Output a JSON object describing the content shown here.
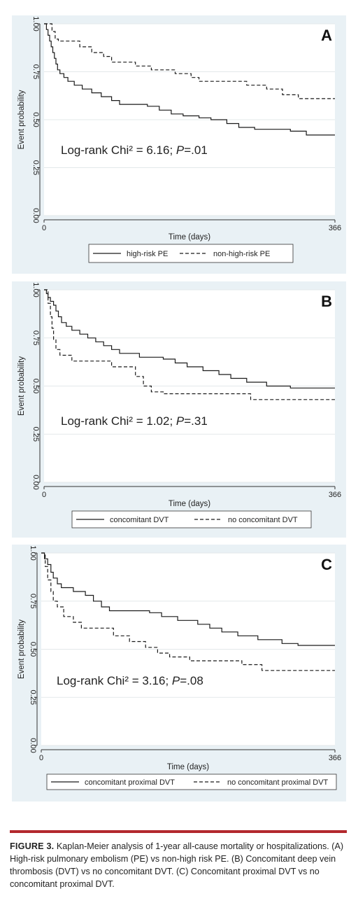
{
  "chart_data": [
    {
      "type": "line",
      "panel_letter": "A",
      "title": "",
      "xlabel": "Time (days)",
      "ylabel": "Event probability",
      "xlim": [
        0,
        366
      ],
      "ylim": [
        0,
        1
      ],
      "x_ticks": [
        "0",
        "366"
      ],
      "y_ticks": [
        "0.00",
        "0.25",
        "0.50",
        "0.75",
        "1.00"
      ],
      "annotation": {
        "prefix": "Log-rank Chi² = 6.16; ",
        "italic": "P",
        "suffix": "=.01"
      },
      "legend_position": "bottom",
      "series": [
        {
          "name": "high-risk PE",
          "dash": "solid",
          "points": [
            [
              0,
              1
            ],
            [
              3,
              0.97
            ],
            [
              5,
              0.94
            ],
            [
              7,
              0.91
            ],
            [
              9,
              0.88
            ],
            [
              11,
              0.85
            ],
            [
              13,
              0.82
            ],
            [
              15,
              0.79
            ],
            [
              17,
              0.76
            ],
            [
              20,
              0.74
            ],
            [
              25,
              0.72
            ],
            [
              30,
              0.7
            ],
            [
              38,
              0.68
            ],
            [
              48,
              0.66
            ],
            [
              60,
              0.64
            ],
            [
              72,
              0.62
            ],
            [
              85,
              0.6
            ],
            [
              95,
              0.58
            ],
            [
              130,
              0.57
            ],
            [
              145,
              0.55
            ],
            [
              160,
              0.53
            ],
            [
              175,
              0.52
            ],
            [
              195,
              0.51
            ],
            [
              210,
              0.5
            ],
            [
              230,
              0.48
            ],
            [
              245,
              0.46
            ],
            [
              265,
              0.45
            ],
            [
              310,
              0.44
            ],
            [
              330,
              0.42
            ],
            [
              366,
              0.42
            ]
          ]
        },
        {
          "name": "non-high-risk PE",
          "dash": "dashed",
          "points": [
            [
              0,
              1
            ],
            [
              8,
              1
            ],
            [
              10,
              0.96
            ],
            [
              14,
              0.92
            ],
            [
              18,
              0.91
            ],
            [
              45,
              0.88
            ],
            [
              60,
              0.85
            ],
            [
              75,
              0.83
            ],
            [
              85,
              0.8
            ],
            [
              115,
              0.78
            ],
            [
              135,
              0.76
            ],
            [
              165,
              0.74
            ],
            [
              185,
              0.72
            ],
            [
              195,
              0.7
            ],
            [
              255,
              0.68
            ],
            [
              280,
              0.66
            ],
            [
              300,
              0.63
            ],
            [
              320,
              0.61
            ],
            [
              366,
              0.61
            ]
          ]
        }
      ]
    },
    {
      "type": "line",
      "panel_letter": "B",
      "title": "",
      "xlabel": "Time (days)",
      "ylabel": "Event probability",
      "xlim": [
        0,
        366
      ],
      "ylim": [
        0,
        1
      ],
      "x_ticks": [
        "0",
        "366"
      ],
      "y_ticks": [
        "0.00",
        "0.25",
        "0.50",
        "0.75",
        "1.00"
      ],
      "annotation": {
        "prefix": "Log-rank Chi² = 1.02; ",
        "italic": "P",
        "suffix": "=.31"
      },
      "legend_position": "bottom",
      "series": [
        {
          "name": "concomitant DVT",
          "dash": "solid",
          "points": [
            [
              0,
              1
            ],
            [
              3,
              0.98
            ],
            [
              5,
              0.96
            ],
            [
              8,
              0.94
            ],
            [
              12,
              0.92
            ],
            [
              15,
              0.89
            ],
            [
              18,
              0.86
            ],
            [
              22,
              0.83
            ],
            [
              28,
              0.81
            ],
            [
              35,
              0.79
            ],
            [
              45,
              0.77
            ],
            [
              55,
              0.75
            ],
            [
              65,
              0.73
            ],
            [
              75,
              0.71
            ],
            [
              85,
              0.69
            ],
            [
              95,
              0.67
            ],
            [
              120,
              0.65
            ],
            [
              150,
              0.64
            ],
            [
              165,
              0.62
            ],
            [
              180,
              0.6
            ],
            [
              200,
              0.58
            ],
            [
              220,
              0.56
            ],
            [
              235,
              0.54
            ],
            [
              255,
              0.52
            ],
            [
              280,
              0.5
            ],
            [
              310,
              0.49
            ],
            [
              366,
              0.49
            ]
          ]
        },
        {
          "name": "no concomitant DVT",
          "dash": "dashed",
          "points": [
            [
              0,
              1
            ],
            [
              5,
              0.93
            ],
            [
              8,
              0.86
            ],
            [
              10,
              0.8
            ],
            [
              12,
              0.74
            ],
            [
              15,
              0.69
            ],
            [
              20,
              0.66
            ],
            [
              35,
              0.63
            ],
            [
              85,
              0.6
            ],
            [
              115,
              0.55
            ],
            [
              125,
              0.5
            ],
            [
              135,
              0.47
            ],
            [
              150,
              0.46
            ],
            [
              260,
              0.43
            ],
            [
              366,
              0.43
            ]
          ]
        }
      ]
    },
    {
      "type": "line",
      "panel_letter": "C",
      "title": "",
      "xlabel": "Time (days)",
      "ylabel": "Event probability",
      "xlim": [
        0,
        366
      ],
      "ylim": [
        0,
        1
      ],
      "x_ticks": [
        "0",
        "366"
      ],
      "y_ticks": [
        "0.00",
        "0.25",
        "0.50",
        "0.75",
        "1.00"
      ],
      "annotation": {
        "prefix": "Log-rank Chi² = 3.16; ",
        "italic": "P",
        "suffix": "=.08"
      },
      "legend_position": "bottom",
      "series": [
        {
          "name": "concomitant proximal DVT",
          "dash": "solid",
          "points": [
            [
              0,
              1
            ],
            [
              4,
              0.97
            ],
            [
              8,
              0.94
            ],
            [
              12,
              0.9
            ],
            [
              15,
              0.87
            ],
            [
              20,
              0.84
            ],
            [
              25,
              0.82
            ],
            [
              40,
              0.8
            ],
            [
              55,
              0.78
            ],
            [
              65,
              0.75
            ],
            [
              75,
              0.72
            ],
            [
              85,
              0.7
            ],
            [
              135,
              0.69
            ],
            [
              150,
              0.67
            ],
            [
              170,
              0.65
            ],
            [
              195,
              0.63
            ],
            [
              210,
              0.61
            ],
            [
              225,
              0.59
            ],
            [
              245,
              0.57
            ],
            [
              270,
              0.55
            ],
            [
              300,
              0.53
            ],
            [
              320,
              0.52
            ],
            [
              366,
              0.52
            ]
          ]
        },
        {
          "name": "no concomitant proximal DVT",
          "dash": "dashed",
          "points": [
            [
              0,
              1
            ],
            [
              5,
              0.93
            ],
            [
              8,
              0.86
            ],
            [
              12,
              0.8
            ],
            [
              15,
              0.75
            ],
            [
              20,
              0.72
            ],
            [
              28,
              0.67
            ],
            [
              40,
              0.64
            ],
            [
              50,
              0.61
            ],
            [
              90,
              0.57
            ],
            [
              110,
              0.54
            ],
            [
              130,
              0.51
            ],
            [
              145,
              0.48
            ],
            [
              160,
              0.46
            ],
            [
              185,
              0.44
            ],
            [
              250,
              0.42
            ],
            [
              275,
              0.39
            ],
            [
              366,
              0.39
            ]
          ]
        }
      ]
    }
  ],
  "caption": {
    "label": "FIGURE 3.",
    "text": " Kaplan-Meier analysis of 1-year all-cause mortality or hospitalizations. (A) High-risk pulmonary embolism (PE) vs non-high risk PE. (B) Concomitant deep vein thrombosis (DVT) vs no concomitant DVT. (C) Concomitant proximal DVT vs no concomitant proximal DVT."
  },
  "colors": {
    "panel_background": "#e9f1f5",
    "plot_background": "#ffffff",
    "grid": "#e3e8ea",
    "line": "#1a1a1a",
    "caption_rule": "#b3282d"
  }
}
